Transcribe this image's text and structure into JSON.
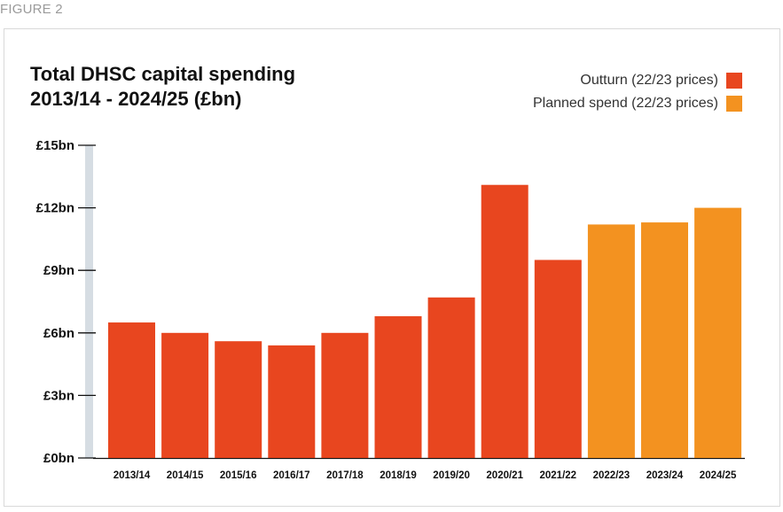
{
  "figure_label": "FIGURE 2",
  "chart_data": {
    "type": "bar",
    "title_line1": "Total DHSC capital spending",
    "title_line2": "2013/14 - 2024/25 (£bn)",
    "categories": [
      "2013/14",
      "2014/15",
      "2015/16",
      "2016/17",
      "2017/18",
      "2018/19",
      "2019/20",
      "2020/21",
      "2021/22",
      "2022/23",
      "2023/24",
      "2024/25"
    ],
    "values": [
      6.5,
      6.0,
      5.6,
      5.4,
      6.0,
      6.8,
      7.7,
      13.1,
      9.5,
      11.2,
      11.3,
      12.0
    ],
    "series_type": [
      "Outturn",
      "Outturn",
      "Outturn",
      "Outturn",
      "Outturn",
      "Outturn",
      "Outturn",
      "Outturn",
      "Outturn",
      "Planned",
      "Planned",
      "Planned"
    ],
    "legend": [
      {
        "name": "Outturn (22/23 prices)",
        "color": "#e8461f"
      },
      {
        "name": "Planned spend (22/23 prices)",
        "color": "#f39220"
      }
    ],
    "colors": {
      "Outturn": "#e8461f",
      "Planned": "#f39220"
    },
    "y_ticks": [
      0,
      3,
      6,
      9,
      12,
      15
    ],
    "y_tick_labels": [
      "£0bn",
      "£3bn",
      "£6bn",
      "£9bn",
      "£12bn",
      "£15bn"
    ],
    "ylim": [
      0,
      15
    ],
    "grid": false
  }
}
